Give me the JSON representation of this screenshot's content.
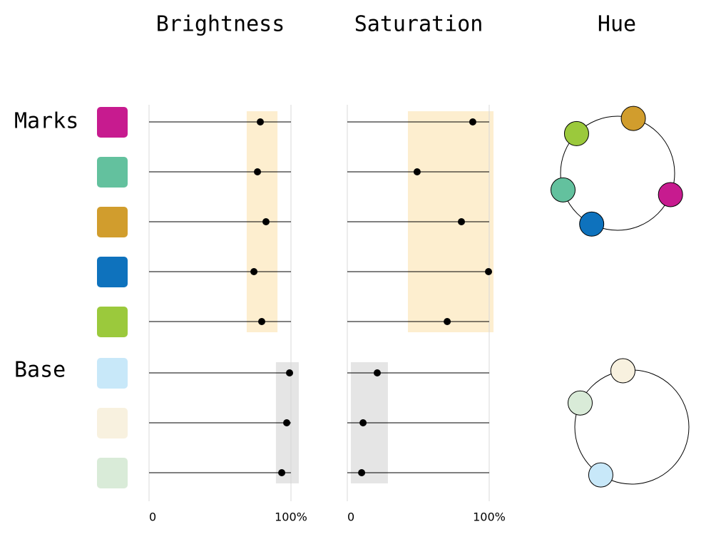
{
  "headers": {
    "brightness": "Brightness",
    "saturation": "Saturation",
    "hue": "Hue"
  },
  "xlim": [
    0,
    100
  ],
  "xticks": [
    0,
    {
      "value": 100,
      "label": "100%"
    }
  ],
  "groups": [
    {
      "label": "Marks",
      "band": {
        "brightness": [
          68.8,
          90.5
        ],
        "saturation": [
          42.7,
          103
        ]
      },
      "colors": [
        {
          "color": "#c71b8f",
          "brightness": 78.4,
          "saturation": 88.4,
          "hue": 338
        },
        {
          "color": "#63c19e",
          "brightness": 76.4,
          "saturation": 49.2,
          "hue": 197
        },
        {
          "color": "#d19d2d",
          "brightness": 82.4,
          "saturation": 80.4,
          "hue": 74
        },
        {
          "color": "#0e72bd",
          "brightness": 73.9,
          "saturation": 99.5,
          "hue": 243
        },
        {
          "color": "#9bc93c",
          "brightness": 79.4,
          "saturation": 70.4,
          "hue": 136
        }
      ]
    },
    {
      "label": "Base",
      "band": {
        "brightness": [
          89.4,
          105.5
        ],
        "saturation": [
          2.5,
          28.6
        ]
      },
      "colors": [
        {
          "color": "#c8e8f9",
          "brightness": 99,
          "saturation": 21.1,
          "hue": 237
        },
        {
          "color": "#f8f1df",
          "brightness": 97,
          "saturation": 11.1,
          "hue": 99
        },
        {
          "color": "#d9ebd8",
          "brightness": 93.5,
          "saturation": 10.1,
          "hue": 155
        }
      ]
    }
  ]
}
